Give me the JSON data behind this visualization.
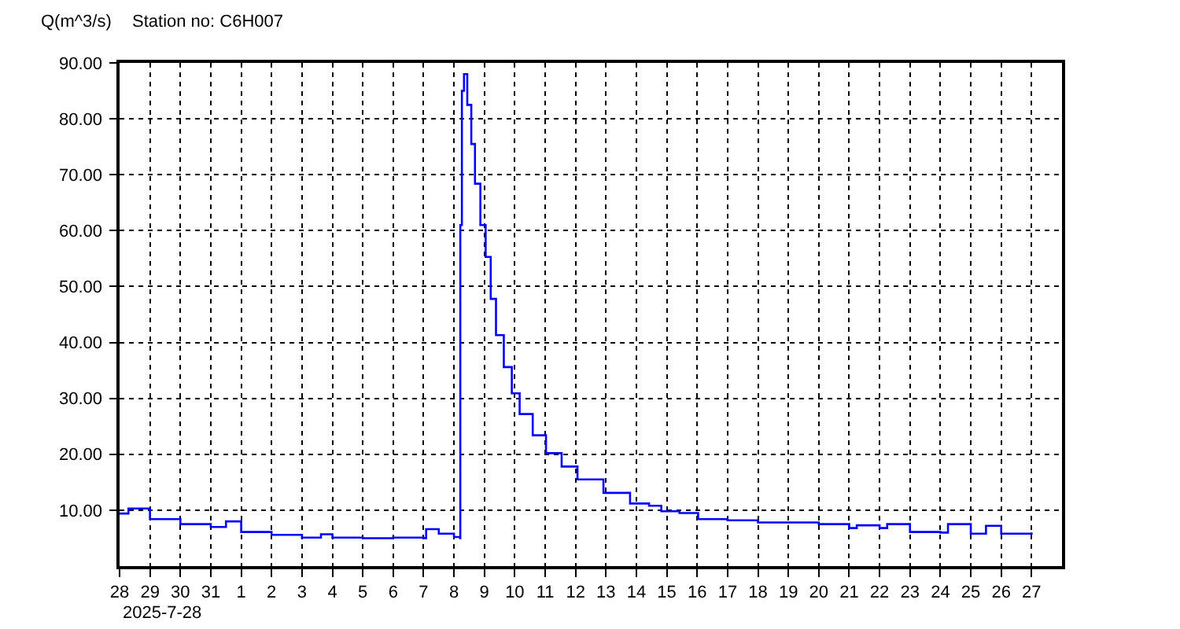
{
  "chart_data": {
    "type": "step",
    "title": "Station no: C6H007",
    "ylabel": "Q(m^3/s)",
    "annotations": [
      "2025-7-28"
    ],
    "x": [
      "2025-07-28T00:00",
      "2025-07-28T07:00",
      "2025-07-29T00:00",
      "2025-07-30T00:00",
      "2025-07-31T00:00",
      "2025-07-31T12:00",
      "2025-08-01T00:00",
      "2025-08-02T00:00",
      "2025-08-03T00:00",
      "2025-08-03T15:00",
      "2025-08-04T00:00",
      "2025-08-05T00:00",
      "2025-08-06T00:00",
      "2025-08-07T00:00",
      "2025-08-07T02:00",
      "2025-08-07T12:00",
      "2025-08-08T00:00",
      "2025-08-08T04:50",
      "2025-08-08T05:00",
      "2025-08-08T06:15",
      "2025-08-08T07:55",
      "2025-08-08T10:30",
      "2025-08-08T13:40",
      "2025-08-08T16:35",
      "2025-08-08T20:50",
      "2025-08-09T01:00",
      "2025-08-09T05:00",
      "2025-08-09T09:10",
      "2025-08-09T15:20",
      "2025-08-09T21:40",
      "2025-08-10T03:50",
      "2025-08-10T14:10",
      "2025-08-11T00:40",
      "2025-08-11T13:00",
      "2025-08-12T01:30",
      "2025-08-12T22:00",
      "2025-08-13T19:00",
      "2025-08-14T10:00",
      "2025-08-14T19:40",
      "2025-08-15T10:00",
      "2025-08-16T00:45",
      "2025-08-17T00:00",
      "2025-08-18T00:00",
      "2025-08-19T00:00",
      "2025-08-20T00:00",
      "2025-08-21T00:00",
      "2025-08-21T06:00",
      "2025-08-22T00:00",
      "2025-08-22T06:00",
      "2025-08-23T00:00",
      "2025-08-24T00:00",
      "2025-08-24T06:00",
      "2025-08-25T00:00",
      "2025-08-25T12:00",
      "2025-08-26T00:00",
      "2025-08-27T00:00"
    ],
    "series": [
      {
        "color": "#0000ff",
        "values": [
          9.4,
          10.3,
          8.4,
          7.5,
          7.0,
          8.0,
          6.1,
          5.6,
          5.1,
          5.7,
          5.1,
          5.0,
          5.1,
          5.0,
          6.6,
          5.8,
          5.2,
          5.0,
          61,
          85,
          88,
          82.5,
          75.5,
          68.4,
          61,
          55.3,
          47.8,
          41.3,
          35.6,
          30.9,
          27.2,
          23.4,
          20.2,
          17.8,
          15.5,
          13.1,
          11.2,
          10.8,
          9.8,
          9.5,
          8.4,
          8.2,
          7.8,
          7.8,
          7.5,
          6.8,
          7.3,
          6.8,
          7.5,
          6.1,
          6.0,
          7.5,
          5.8,
          7.2,
          5.8,
          6.0
        ]
      }
    ],
    "xlim": [
      "2025-07-28",
      "2025-08-28"
    ],
    "xticks": [
      {
        "value": "2025-07-28",
        "label": "28"
      },
      {
        "value": "2025-07-29",
        "label": "29"
      },
      {
        "value": "2025-07-30",
        "label": "30"
      },
      {
        "value": "2025-07-31",
        "label": "31"
      },
      {
        "value": "2025-08-01",
        "label": "1"
      },
      {
        "value": "2025-08-02",
        "label": "2"
      },
      {
        "value": "2025-08-03",
        "label": "3"
      },
      {
        "value": "2025-08-04",
        "label": "4"
      },
      {
        "value": "2025-08-05",
        "label": "5"
      },
      {
        "value": "2025-08-06",
        "label": "6"
      },
      {
        "value": "2025-08-07",
        "label": "7"
      },
      {
        "value": "2025-08-08",
        "label": "8"
      },
      {
        "value": "2025-08-09",
        "label": "9"
      },
      {
        "value": "2025-08-10",
        "label": "10"
      },
      {
        "value": "2025-08-11",
        "label": "11"
      },
      {
        "value": "2025-08-12",
        "label": "12"
      },
      {
        "value": "2025-08-13",
        "label": "13"
      },
      {
        "value": "2025-08-14",
        "label": "14"
      },
      {
        "value": "2025-08-15",
        "label": "15"
      },
      {
        "value": "2025-08-16",
        "label": "16"
      },
      {
        "value": "2025-08-17",
        "label": "17"
      },
      {
        "value": "2025-08-18",
        "label": "18"
      },
      {
        "value": "2025-08-19",
        "label": "19"
      },
      {
        "value": "2025-08-20",
        "label": "20"
      },
      {
        "value": "2025-08-21",
        "label": "21"
      },
      {
        "value": "2025-08-22",
        "label": "22"
      },
      {
        "value": "2025-08-23",
        "label": "23"
      },
      {
        "value": "2025-08-24",
        "label": "24"
      },
      {
        "value": "2025-08-25",
        "label": "25"
      },
      {
        "value": "2025-08-26",
        "label": "26"
      },
      {
        "value": "2025-08-27",
        "label": "27"
      }
    ],
    "ylim": [
      0,
      90
    ],
    "yticks": [
      {
        "value": 10,
        "label": "10.00"
      },
      {
        "value": 20,
        "label": "20.00"
      },
      {
        "value": 30,
        "label": "30.00"
      },
      {
        "value": 40,
        "label": "40.00"
      },
      {
        "value": 50,
        "label": "50.00"
      },
      {
        "value": 60,
        "label": "60.00"
      },
      {
        "value": 70,
        "label": "70.00"
      },
      {
        "value": 80,
        "label": "80.00"
      },
      {
        "value": 90,
        "label": "90.00"
      }
    ],
    "grid": true,
    "line_style": "solid"
  }
}
